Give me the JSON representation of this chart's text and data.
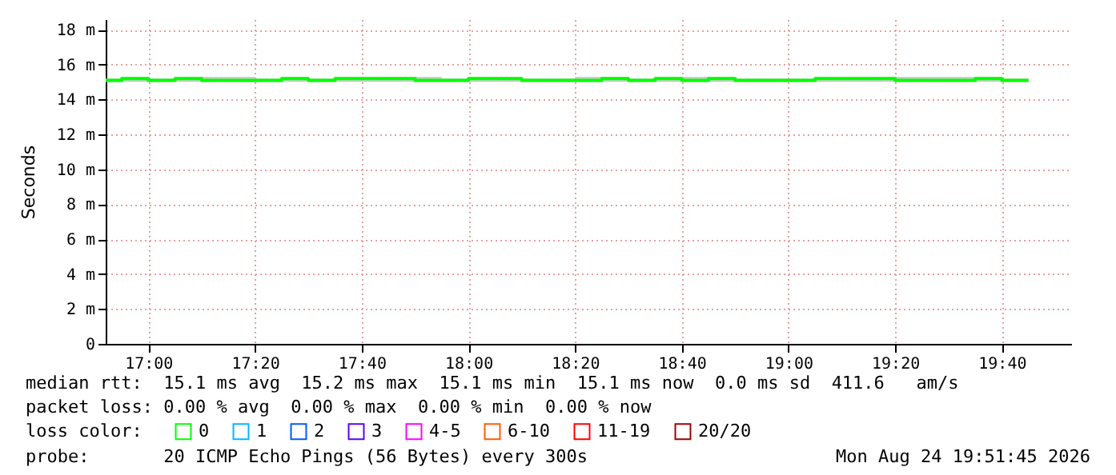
{
  "chart_data": {
    "type": "step",
    "ylabel": "Seconds",
    "x": [
      "2026-08-24T16:52",
      "2026-08-24T16:55",
      "2026-08-24T17:00",
      "2026-08-24T17:05",
      "2026-08-24T17:10",
      "2026-08-24T17:15",
      "2026-08-24T17:20",
      "2026-08-24T17:25",
      "2026-08-24T17:30",
      "2026-08-24T17:35",
      "2026-08-24T17:40",
      "2026-08-24T17:45",
      "2026-08-24T17:50",
      "2026-08-24T17:55",
      "2026-08-24T18:00",
      "2026-08-24T18:05",
      "2026-08-24T18:10",
      "2026-08-24T18:15",
      "2026-08-24T18:20",
      "2026-08-24T18:25",
      "2026-08-24T18:30",
      "2026-08-24T18:35",
      "2026-08-24T18:40",
      "2026-08-24T18:45",
      "2026-08-24T18:50",
      "2026-08-24T18:55",
      "2026-08-24T19:00",
      "2026-08-24T19:05",
      "2026-08-24T19:10",
      "2026-08-24T19:15",
      "2026-08-24T19:20",
      "2026-08-24T19:25",
      "2026-08-24T19:30",
      "2026-08-24T19:35",
      "2026-08-24T19:40",
      "2026-08-24T19:45"
    ],
    "series": [
      {
        "name": "0",
        "color": "#00ff00",
        "values": [
          15.1,
          15.2,
          15.1,
          15.2,
          15.1,
          15.1,
          15.1,
          15.2,
          15.1,
          15.2,
          15.2,
          15.2,
          15.1,
          15.1,
          15.2,
          15.2,
          15.1,
          15.1,
          15.1,
          15.2,
          15.1,
          15.2,
          15.1,
          15.2,
          15.1,
          15.1,
          15.1,
          15.2,
          15.2,
          15.2,
          15.1,
          15.1,
          15.1,
          15.2,
          15.1,
          15.1
        ],
        "lower": [
          15.0,
          15.0,
          15.0,
          15.0,
          15.0,
          15.0,
          15.0,
          15.0,
          15.0,
          15.0,
          15.0,
          15.0,
          15.0,
          15.0,
          15.0,
          15.0,
          15.0,
          15.0,
          15.0,
          15.0,
          15.0,
          15.0,
          15.0,
          15.0,
          15.0,
          15.0,
          15.0,
          15.0,
          15.0,
          15.0,
          15.0,
          15.0,
          15.0,
          15.0,
          15.0,
          15.0
        ],
        "upper": [
          15.2,
          15.3,
          15.2,
          15.3,
          15.3,
          15.3,
          15.2,
          15.3,
          15.2,
          15.3,
          15.3,
          15.3,
          15.3,
          15.2,
          15.3,
          15.3,
          15.2,
          15.2,
          15.3,
          15.3,
          15.2,
          15.3,
          15.3,
          15.3,
          15.2,
          15.2,
          15.2,
          15.3,
          15.3,
          15.3,
          15.3,
          15.3,
          15.3,
          15.3,
          15.2,
          15.2
        ]
      },
      {
        "name": "1",
        "color": "#00b8ff",
        "values": [
          null,
          null,
          null,
          null,
          null,
          null,
          null,
          null,
          null,
          null,
          null,
          null,
          null,
          null,
          null,
          null,
          null,
          null,
          null,
          null,
          null,
          null,
          null,
          null,
          null,
          null,
          null,
          null,
          null,
          null,
          null,
          null,
          null,
          null,
          null,
          null
        ]
      },
      {
        "name": "2",
        "color": "#0059ff",
        "values": [
          null,
          null,
          null,
          null,
          null,
          null,
          null,
          null,
          null,
          null,
          null,
          null,
          null,
          null,
          null,
          null,
          null,
          null,
          null,
          null,
          null,
          null,
          null,
          null,
          null,
          null,
          null,
          null,
          null,
          null,
          null,
          null,
          null,
          null,
          null,
          null
        ]
      },
      {
        "name": "3",
        "color": "#5e00ff",
        "values": [
          null,
          null,
          null,
          null,
          null,
          null,
          null,
          null,
          null,
          null,
          null,
          null,
          null,
          null,
          null,
          null,
          null,
          null,
          null,
          null,
          null,
          null,
          null,
          null,
          null,
          null,
          null,
          null,
          null,
          null,
          null,
          null,
          null,
          null,
          null,
          null
        ]
      },
      {
        "name": "4-5",
        "color": "#ff00ff",
        "values": [
          null,
          null,
          null,
          null,
          null,
          null,
          null,
          null,
          null,
          null,
          null,
          null,
          null,
          null,
          null,
          null,
          null,
          null,
          null,
          null,
          null,
          null,
          null,
          null,
          null,
          null,
          null,
          null,
          null,
          null,
          null,
          null,
          null,
          null,
          null,
          null
        ]
      },
      {
        "name": "6-10",
        "color": "#ff5e00",
        "values": [
          null,
          null,
          null,
          null,
          null,
          null,
          null,
          null,
          null,
          null,
          null,
          null,
          null,
          null,
          null,
          null,
          null,
          null,
          null,
          null,
          null,
          null,
          null,
          null,
          null,
          null,
          null,
          null,
          null,
          null,
          null,
          null,
          null,
          null,
          null,
          null
        ]
      },
      {
        "name": "11-19",
        "color": "#ff0000",
        "values": [
          null,
          null,
          null,
          null,
          null,
          null,
          null,
          null,
          null,
          null,
          null,
          null,
          null,
          null,
          null,
          null,
          null,
          null,
          null,
          null,
          null,
          null,
          null,
          null,
          null,
          null,
          null,
          null,
          null,
          null,
          null,
          null,
          null,
          null,
          null,
          null
        ]
      },
      {
        "name": "20/20",
        "color": "#a10000",
        "values": [
          null,
          null,
          null,
          null,
          null,
          null,
          null,
          null,
          null,
          null,
          null,
          null,
          null,
          null,
          null,
          null,
          null,
          null,
          null,
          null,
          null,
          null,
          null,
          null,
          null,
          null,
          null,
          null,
          null,
          null,
          null,
          null,
          null,
          null,
          null,
          null
        ]
      }
    ],
    "legend_title": "loss color:",
    "legend": "bottom left",
    "xlim": [
      "2026-08-24T16:52",
      "2026-08-24T19:53"
    ],
    "xticks": [
      {
        "value": "2026-08-24T17:00",
        "label": "17:00"
      },
      {
        "value": "2026-08-24T17:20",
        "label": "17:20"
      },
      {
        "value": "2026-08-24T17:40",
        "label": "17:40"
      },
      {
        "value": "2026-08-24T18:00",
        "label": "18:00"
      },
      {
        "value": "2026-08-24T18:20",
        "label": "18:20"
      },
      {
        "value": "2026-08-24T18:40",
        "label": "18:40"
      },
      {
        "value": "2026-08-24T19:00",
        "label": "19:00"
      },
      {
        "value": "2026-08-24T19:20",
        "label": "19:20"
      },
      {
        "value": "2026-08-24T19:40",
        "label": "19:40"
      }
    ],
    "ylim": [
      0,
      18.6
    ],
    "yticks": [
      0,
      {
        "value": 2,
        "label": "2 m"
      },
      {
        "value": 4,
        "label": "4 m"
      },
      {
        "value": 6,
        "label": "6 m"
      },
      {
        "value": 8,
        "label": "8 m"
      },
      {
        "value": 10,
        "label": "10 m"
      },
      {
        "value": 12,
        "label": "12 m"
      },
      {
        "value": 14,
        "label": "14 m"
      },
      {
        "value": 16,
        "label": "16 m"
      },
      {
        "value": 18,
        "label": "18 m"
      }
    ],
    "grid": true,
    "annotations": [
      "median rtt:  15.1 ms avg  15.2 ms max  15.1 ms min  15.1 ms now  0.0 ms sd  411.6   am/s",
      "packet loss: 0.00 % avg  0.00 % max  0.00 % min  0.00 % now",
      "probe:       20 ICMP Echo Pings (56 Bytes) every 300s",
      "Mon Aug 24 19:51:45 2026"
    ]
  }
}
